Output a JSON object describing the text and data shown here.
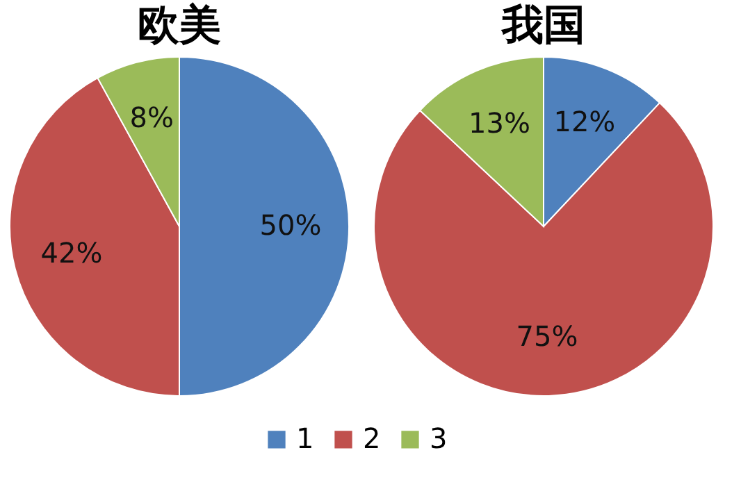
{
  "chart_data": [
    {
      "type": "pie",
      "title": "欧美",
      "categories": [
        "1",
        "2",
        "3"
      ],
      "values": [
        50,
        42,
        8
      ],
      "colors": [
        "#4f81bd",
        "#c0504d",
        "#9bbb59"
      ],
      "value_labels": [
        "50%",
        "42%",
        "8%"
      ],
      "legend": "bottom"
    },
    {
      "type": "pie",
      "title": "我国",
      "categories": [
        null,
        null,
        null
      ],
      "values": [
        12,
        75,
        13
      ],
      "colors": [
        "#4f81bd",
        "#c0504d",
        "#9bbb59"
      ],
      "value_labels": [
        "12%",
        "75%",
        "13%"
      ]
    }
  ]
}
